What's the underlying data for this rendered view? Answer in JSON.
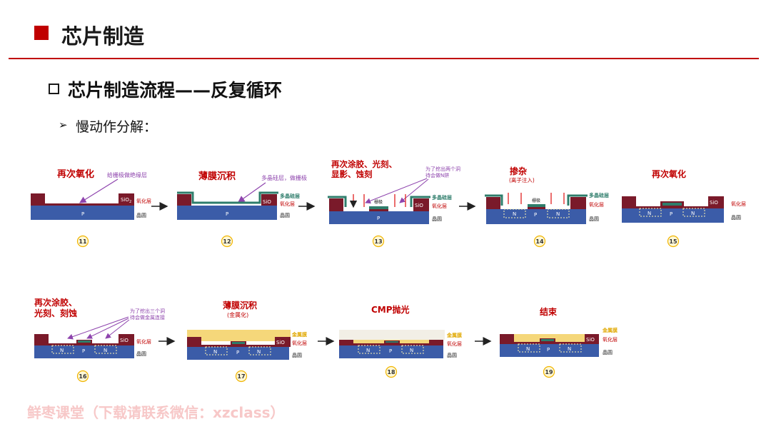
{
  "header": {
    "title": "芯片制造"
  },
  "section": {
    "title": "芯片制造流程——反复循环"
  },
  "bullet": {
    "text": "慢动作分解："
  },
  "labels": {
    "oxide_layer": "氧化层",
    "wafer": "晶圆",
    "sio2": "SiO",
    "sio2_sub": "2",
    "poly_si": "多晶硅层",
    "metal_film": "金属膜",
    "gate": "栅极",
    "p": "P",
    "n": "N"
  },
  "steps": [
    {
      "num": "11",
      "title": "再次氧化",
      "note": "给栅极做绝缘层"
    },
    {
      "num": "12",
      "title": "薄膜沉积",
      "note": "多晶硅层，做栅极"
    },
    {
      "num": "13",
      "title_line1": "再次涂胶、光刻、",
      "title_line2": "显影、蚀刻",
      "note_line1": "为了挖出两个洞",
      "note_line2": "待会做N阱"
    },
    {
      "num": "14",
      "title": "掺杂",
      "subtitle": "(离子注入)"
    },
    {
      "num": "15",
      "title": "再次氧化"
    },
    {
      "num": "16",
      "title_line1": "再次涂胶、",
      "title_line2": "光刻、刻蚀",
      "note_line1": "为了挖出三个洞",
      "note_line2": "待会做金属连接"
    },
    {
      "num": "17",
      "title": "薄膜沉积",
      "subtitle": "(金属化)"
    },
    {
      "num": "18",
      "title": "CMP抛光"
    },
    {
      "num": "19",
      "title": "结束"
    }
  ],
  "watermark": {
    "text": "鲜枣课堂（下载请联系微信：xzclass）"
  },
  "colors": {
    "accent": "#c00000",
    "wafer": "#3b5ca8",
    "oxide": "#7a1a2a",
    "poly": "#2e7d6b",
    "metal": "#f5d77a",
    "note": "#8e44ad",
    "label_red": "#c00000"
  }
}
